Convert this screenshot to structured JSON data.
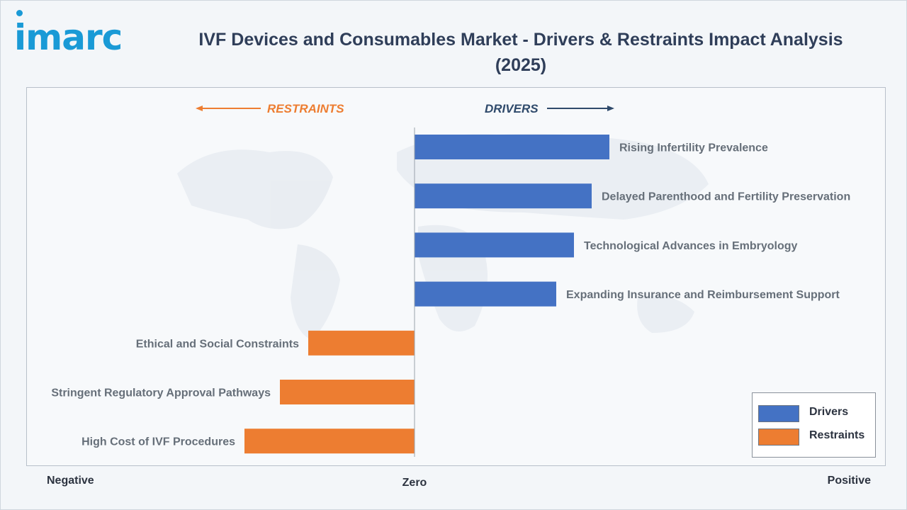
{
  "logo_text": "imarc",
  "title": "IVF Devices and Consumables Market - Drivers & Restraints Impact Analysis (2025)",
  "direction_labels": {
    "restraints": "RESTRAINTS",
    "drivers": "DRIVERS"
  },
  "axis_words": {
    "negative": "Negative",
    "zero": "Zero",
    "positive": "Positive"
  },
  "legend": [
    {
      "label": "Drivers",
      "color": "#4472c4"
    },
    {
      "label": "Restraints",
      "color": "#ed7d31"
    }
  ],
  "chart_data": {
    "type": "bar",
    "orientation": "horizontal",
    "categories": [
      "Rising Infertility Prevalence",
      "Delayed Parenthood and Fertility Preservation",
      "Technological Advances in Embryology",
      "Expanding Insurance and Reimbursement Support",
      "Ethical and Social Constraints",
      "Stringent Regulatory Approval Pathways",
      "High Cost of IVF Procedures"
    ],
    "series": [
      {
        "name": "Drivers",
        "color": "#4472c4",
        "values": [
          5.5,
          5.0,
          4.5,
          4.0,
          null,
          null,
          null
        ]
      },
      {
        "name": "Restraints",
        "color": "#ed7d31",
        "values": [
          null,
          null,
          null,
          null,
          -3.0,
          -3.8,
          -4.8
        ]
      }
    ],
    "xlim": [
      -11,
      13
    ],
    "xlabel_left": "Negative",
    "xlabel_center": "Zero",
    "xlabel_right": "Positive",
    "legend_position": "bottom-right",
    "grid": false
  }
}
